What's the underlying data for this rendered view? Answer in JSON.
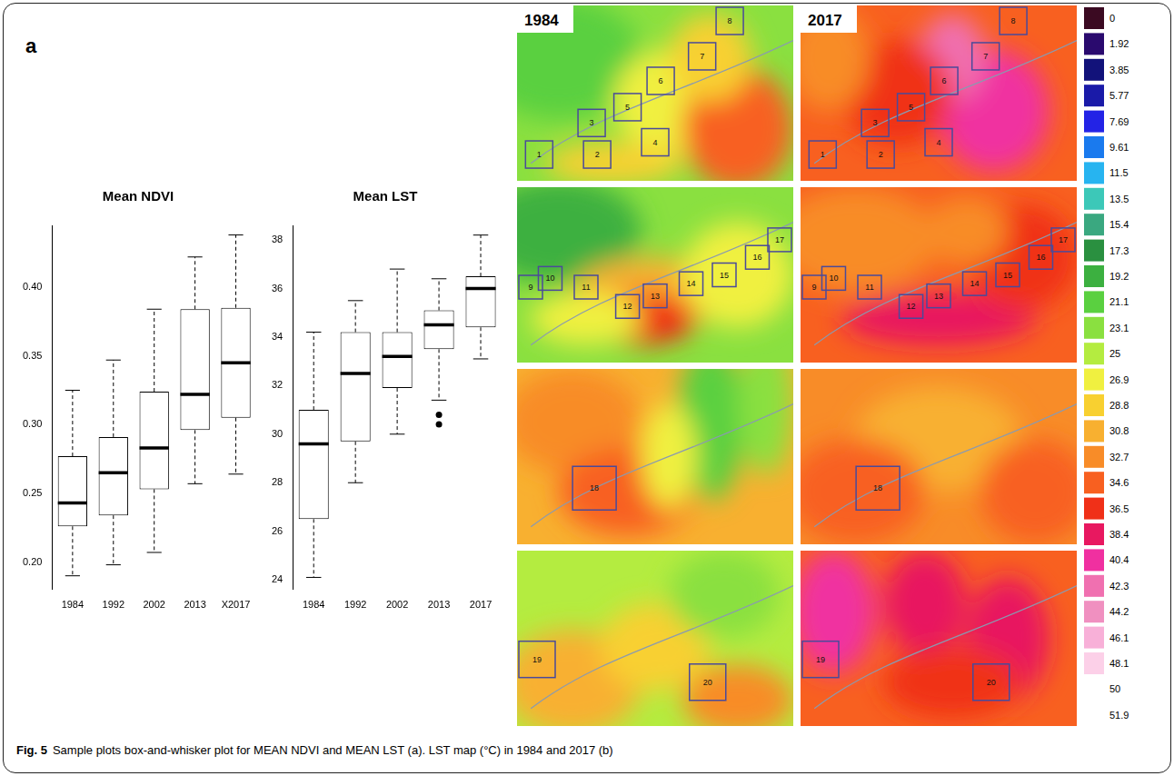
{
  "panel_a": "a",
  "chart_data": [
    {
      "type": "box",
      "title": "Mean NDVI",
      "categories": [
        "1984",
        "1992",
        "2002",
        "2013",
        "X2017"
      ],
      "min": [
        0.19,
        0.198,
        0.207,
        0.257,
        0.264
      ],
      "q1": [
        0.226,
        0.234,
        0.253,
        0.296,
        0.305
      ],
      "median": [
        0.243,
        0.265,
        0.283,
        0.322,
        0.345
      ],
      "q3": [
        0.277,
        0.291,
        0.324,
        0.384,
        0.385
      ],
      "max": [
        0.325,
        0.347,
        0.384,
        0.422,
        0.438
      ],
      "outliers": [
        [],
        [],
        [],
        [],
        []
      ],
      "color": "#ffffff",
      "ylim": [
        0.18,
        0.445
      ],
      "yticks": [
        {
          "value": 0.2,
          "label": "0.20"
        },
        {
          "value": 0.25,
          "label": "0.25"
        },
        {
          "value": 0.3,
          "label": "0.30"
        },
        {
          "value": 0.35,
          "label": "0.35"
        },
        {
          "value": 0.4,
          "label": "0.40"
        }
      ],
      "grid": false
    },
    {
      "type": "box",
      "title": "Mean LST",
      "categories": [
        "1984",
        "1992",
        "2002",
        "2013",
        "2017"
      ],
      "min": [
        24.1,
        28.0,
        30.0,
        31.4,
        33.1
      ],
      "q1": [
        26.5,
        29.7,
        31.9,
        33.5,
        34.4
      ],
      "median": [
        29.6,
        32.5,
        33.2,
        34.5,
        36.0
      ],
      "q3": [
        31.0,
        34.2,
        34.2,
        35.1,
        36.5
      ],
      "max": [
        34.2,
        35.5,
        36.8,
        36.4,
        38.2
      ],
      "outliers": [
        [],
        [],
        [],
        [
          30.8,
          30.4
        ],
        []
      ],
      "color": "#ffffff",
      "ylim": [
        23.6,
        38.6
      ],
      "yticks": [
        24,
        26,
        28,
        30,
        32,
        34,
        36,
        38
      ],
      "grid": false
    }
  ],
  "maps": {
    "panel": "b",
    "years": [
      "1984",
      "2017"
    ],
    "rows": [
      [
        "1",
        "2",
        "3",
        "4",
        "5",
        "6",
        "7",
        "8"
      ],
      [
        "9",
        "10",
        "11",
        "12",
        "13",
        "14",
        "15",
        "16",
        "17"
      ],
      [
        "18"
      ],
      [
        "19",
        "20"
      ]
    ],
    "colorbar": {
      "ticks": [
        0,
        1.92,
        3.85,
        5.77,
        7.69,
        9.61,
        11.5,
        13.5,
        15.4,
        17.3,
        19.2,
        21.1,
        23.1,
        25,
        26.9,
        28.8,
        30.8,
        32.7,
        34.6,
        36.5,
        38.4,
        40.4,
        42.3,
        44.2,
        46.1,
        48.1,
        50,
        51.9
      ],
      "colors": [
        "#3b0a22",
        "#2a0a6e",
        "#12127a",
        "#1a1aa8",
        "#2323e6",
        "#1a7aee",
        "#27b4f0",
        "#3cc8b8",
        "#3aa880",
        "#2a9040",
        "#3cb040",
        "#5ad040",
        "#8ae040",
        "#b4ec40",
        "#f0f040",
        "#f8d030",
        "#f8b030",
        "#f88c28",
        "#f86020",
        "#f03018",
        "#e81860",
        "#f030a0",
        "#f070b0",
        "#f090c0",
        "#f8b0d8",
        "#fcd0e8",
        "#ffffff",
        "#ffffff"
      ]
    }
  },
  "caption": {
    "label": "Fig. 5",
    "text": "Sample plots box-and-whisker plot for MEAN NDVI and MEAN LST (a). LST map (°C) in 1984 and 2017 (b)"
  }
}
